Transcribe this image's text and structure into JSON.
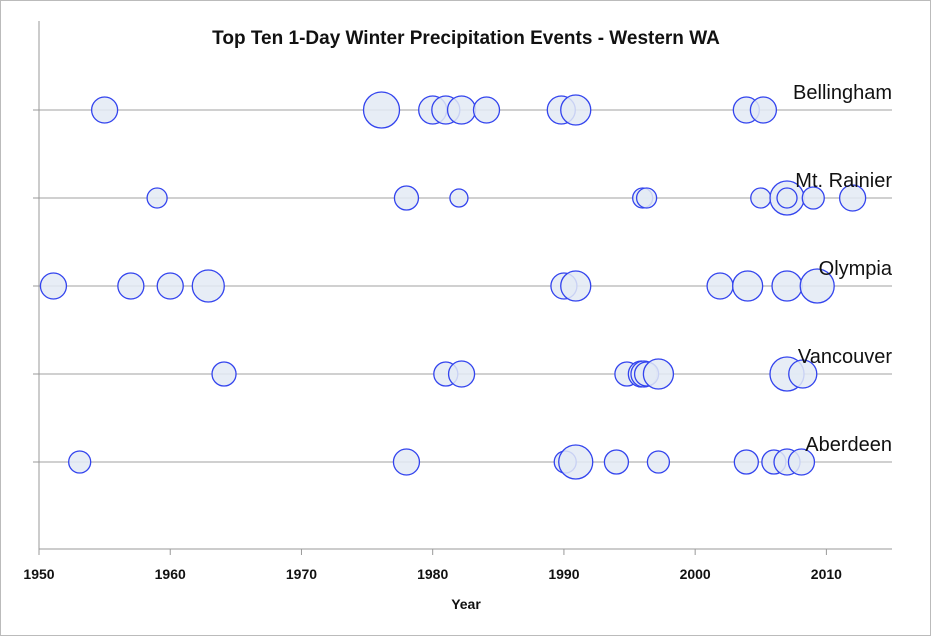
{
  "chart_data": {
    "type": "scatter",
    "title": "Top Ten 1-Day Winter Precipitation Events - Western WA",
    "xlabel": "Year",
    "ylabel": "",
    "xlim": [
      1950,
      2015
    ],
    "xticks": [
      "1950",
      "1960",
      "1970",
      "1980",
      "1990",
      "2000",
      "2010"
    ],
    "grid": "horizontal lines per station",
    "bubble_color": "#3344ee",
    "bubble_fill": "#e3eaf5",
    "series": [
      {
        "name": "Bellingham",
        "points": [
          {
            "year": 1955,
            "size": 13
          },
          {
            "year": 1976.1,
            "size": 18
          },
          {
            "year": 1980,
            "size": 14
          },
          {
            "year": 1981,
            "size": 14
          },
          {
            "year": 1982.2,
            "size": 14
          },
          {
            "year": 1984.1,
            "size": 13
          },
          {
            "year": 1989.8,
            "size": 14
          },
          {
            "year": 1990.9,
            "size": 15
          },
          {
            "year": 2003.9,
            "size": 13
          },
          {
            "year": 2005.2,
            "size": 13
          }
        ]
      },
      {
        "name": "Mt. Rainier",
        "points": [
          {
            "year": 1959,
            "size": 10
          },
          {
            "year": 1978,
            "size": 12
          },
          {
            "year": 1982,
            "size": 9
          },
          {
            "year": 1996,
            "size": 10
          },
          {
            "year": 1996.3,
            "size": 10
          },
          {
            "year": 2005,
            "size": 10
          },
          {
            "year": 2007,
            "size": 17
          },
          {
            "year": 2007,
            "size": 10
          },
          {
            "year": 2009,
            "size": 11
          },
          {
            "year": 2012,
            "size": 13
          }
        ]
      },
      {
        "name": "Olympia",
        "points": [
          {
            "year": 1951.1,
            "size": 13
          },
          {
            "year": 1957,
            "size": 13
          },
          {
            "year": 1960,
            "size": 13
          },
          {
            "year": 1962.9,
            "size": 16
          },
          {
            "year": 1990,
            "size": 13
          },
          {
            "year": 1990.9,
            "size": 15
          },
          {
            "year": 2001.9,
            "size": 13
          },
          {
            "year": 2004,
            "size": 15
          },
          {
            "year": 2007,
            "size": 15
          },
          {
            "year": 2009.3,
            "size": 17
          }
        ]
      },
      {
        "name": "Vancouver",
        "points": [
          {
            "year": 1964.1,
            "size": 12
          },
          {
            "year": 1981,
            "size": 12
          },
          {
            "year": 1982.2,
            "size": 13
          },
          {
            "year": 1994.8,
            "size": 12
          },
          {
            "year": 1995.9,
            "size": 13
          },
          {
            "year": 1996.1,
            "size": 13
          },
          {
            "year": 1996.3,
            "size": 12
          },
          {
            "year": 1997.2,
            "size": 15
          },
          {
            "year": 2007,
            "size": 17
          },
          {
            "year": 2008.2,
            "size": 14
          }
        ]
      },
      {
        "name": "Aberdeen",
        "points": [
          {
            "year": 1953.1,
            "size": 11
          },
          {
            "year": 1978,
            "size": 13
          },
          {
            "year": 1990.1,
            "size": 11
          },
          {
            "year": 1990.9,
            "size": 17
          },
          {
            "year": 1994,
            "size": 12
          },
          {
            "year": 1997.2,
            "size": 11
          },
          {
            "year": 2003.9,
            "size": 12
          },
          {
            "year": 2006,
            "size": 12
          },
          {
            "year": 2007,
            "size": 13
          },
          {
            "year": 2008.1,
            "size": 13
          }
        ]
      }
    ]
  }
}
